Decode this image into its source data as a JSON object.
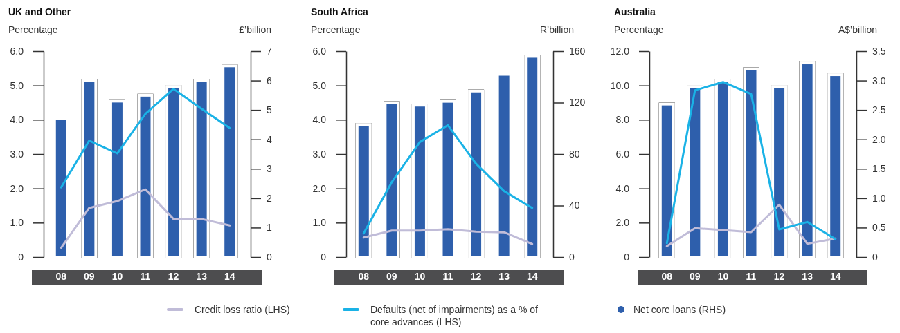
{
  "chart_data": [
    {
      "type": "bar",
      "title": "UK and Other",
      "ylabel": "Percentage",
      "y2label": "£’billion",
      "categories": [
        "08",
        "09",
        "10",
        "11",
        "12",
        "13",
        "14"
      ],
      "legend": "bottom",
      "marker": "none",
      "ylim": [
        0,
        6
      ],
      "yticks": [
        {
          "value": 0,
          "label": "0"
        },
        {
          "value": 1,
          "label": "1.0"
        },
        {
          "value": 2,
          "label": "2.0"
        },
        {
          "value": 3,
          "label": "3.0"
        },
        {
          "value": 4,
          "label": "4.0"
        },
        {
          "value": 5,
          "label": "5.0"
        },
        {
          "value": 6,
          "label": "6.0"
        }
      ],
      "y2lim": [
        0,
        7
      ],
      "y2ticks": [
        0,
        1,
        2,
        3,
        4,
        5,
        6,
        7
      ],
      "series": [
        {
          "axis": "y2",
          "name": "Net core loans (RHS)",
          "color": "#2e5fac",
          "values": [
            4.7,
            6.0,
            5.3,
            5.5,
            5.8,
            6.0,
            6.5
          ]
        },
        {
          "type": "line",
          "name": "Credit loss ratio (LHS)",
          "color": "#c0bcd8",
          "values": [
            0.27,
            1.43,
            1.63,
            1.97,
            1.11,
            1.11,
            0.92
          ]
        },
        {
          "type": "line",
          "name": "Defaults (net of impairments) as a % of core advances (LHS)",
          "color": "#1ab2e6",
          "values": [
            2.03,
            3.39,
            3.02,
            4.17,
            4.9,
            4.32,
            3.76
          ]
        }
      ]
    },
    {
      "type": "bar",
      "title": "South Africa",
      "ylabel": "Percentage",
      "y2label": "R’billion",
      "categories": [
        "08",
        "09",
        "10",
        "11",
        "12",
        "13",
        "14"
      ],
      "marker": "none",
      "ylim": [
        0,
        6
      ],
      "yticks": [
        {
          "value": 0,
          "label": "0"
        },
        {
          "value": 1,
          "label": "1.0"
        },
        {
          "value": 2,
          "label": "2.0"
        },
        {
          "value": 3,
          "label": "3.0"
        },
        {
          "value": 4,
          "label": "4.0"
        },
        {
          "value": 5,
          "label": "5.0"
        },
        {
          "value": 6,
          "label": "6.0"
        }
      ],
      "y2lim": [
        0,
        160
      ],
      "y2ticks": [
        0,
        40,
        80,
        120,
        160
      ],
      "series": [
        {
          "axis": "y2",
          "color": "#2e5fac",
          "values": [
            103,
            120,
            118,
            121,
            129,
            142,
            156
          ]
        },
        {
          "type": "line",
          "color": "#c0bcd8",
          "values": [
            0.57,
            0.77,
            0.77,
            0.81,
            0.74,
            0.72,
            0.38
          ]
        },
        {
          "type": "line",
          "color": "#1ab2e6",
          "values": [
            0.69,
            2.18,
            3.35,
            3.84,
            2.72,
            1.92,
            1.43
          ]
        }
      ]
    },
    {
      "type": "bar",
      "title": "Australia",
      "ylabel": "Percentage",
      "y2label": "A$’billion",
      "categories": [
        "08",
        "09",
        "10",
        "11",
        "12",
        "13",
        "14"
      ],
      "marker": "none",
      "ylim": [
        0,
        12
      ],
      "yticks": [
        {
          "value": 0,
          "label": "0"
        },
        {
          "value": 2,
          "label": "2.0"
        },
        {
          "value": 4,
          "label": "4.0"
        },
        {
          "value": 6,
          "label": "6.0"
        },
        {
          "value": 8,
          "label": "8.0"
        },
        {
          "value": 10,
          "label": "10.0"
        },
        {
          "value": 12,
          "label": "12.0"
        }
      ],
      "y2lim": [
        0,
        3.5
      ],
      "y2ticks": [
        0,
        0.5,
        {
          "value": 1,
          "label": "1.0"
        },
        1.5,
        {
          "value": 2,
          "label": "2.0"
        },
        2.5,
        {
          "value": 3,
          "label": "3.0"
        },
        3.5
      ],
      "series": [
        {
          "axis": "y2",
          "color": "#2e5fac",
          "values": [
            2.6,
            2.9,
            3.0,
            3.2,
            2.9,
            3.3,
            3.1
          ]
        },
        {
          "type": "line",
          "color": "#c0bcd8",
          "values": [
            0.63,
            1.68,
            1.57,
            1.45,
            3.05,
            0.77,
            1.08
          ]
        },
        {
          "type": "line",
          "color": "#1ab2e6",
          "values": [
            0.81,
            9.72,
            10.2,
            9.5,
            1.61,
            2.04,
            1.05
          ]
        }
      ]
    }
  ]
}
